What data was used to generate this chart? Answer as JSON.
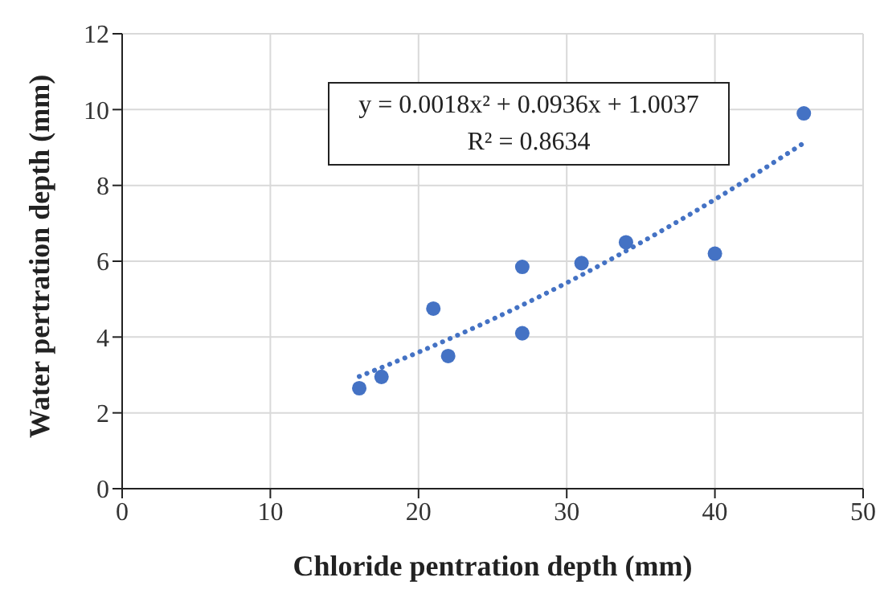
{
  "chart_data": {
    "type": "scatter",
    "xlabel": "Chloride pentration depth (mm)",
    "ylabel": "Water pertration depth (mm)",
    "xlim": [
      0,
      50
    ],
    "xticks": [
      0,
      10,
      20,
      30,
      40,
      50
    ],
    "ylim": [
      0,
      12
    ],
    "yticks": [
      0,
      2,
      4,
      6,
      8,
      10,
      12
    ],
    "grid": true,
    "series": [
      {
        "color": "#4472c4",
        "marker": "circle",
        "x": [
          16,
          17.5,
          21,
          22,
          27,
          27,
          31,
          34,
          40,
          46
        ],
        "values": [
          2.65,
          2.95,
          4.75,
          3.5,
          5.85,
          4.1,
          5.95,
          6.5,
          6.2,
          9.9
        ]
      },
      {
        "type": "line",
        "color": "#4472c4",
        "line_style": "dotted",
        "marker": "none",
        "x": [
          16,
          20,
          25,
          30,
          35,
          40,
          46
        ],
        "values": [
          2.96,
          3.6,
          4.47,
          5.43,
          6.49,
          7.63,
          9.12
        ]
      }
    ],
    "annotations": [
      "y = 0.0018x² + 0.0936x + 1.0037",
      "R² = 0.8634"
    ]
  }
}
